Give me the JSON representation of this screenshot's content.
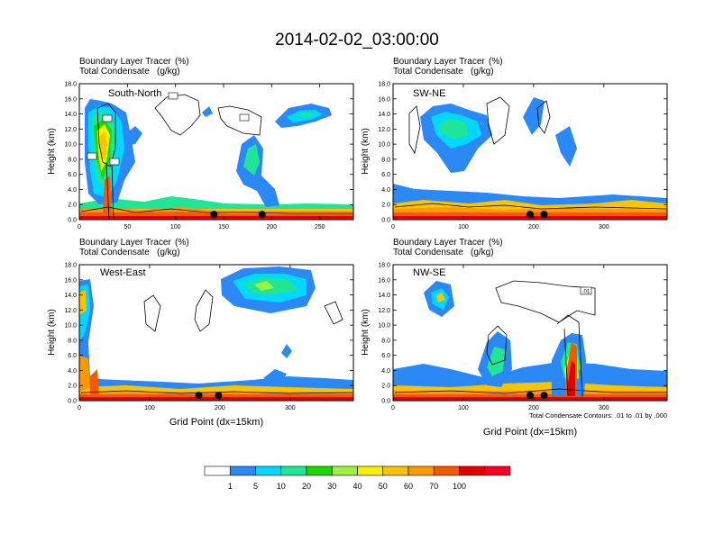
{
  "title": "2014-02-02_03:00:00",
  "label_bl": "Boundary Layer Tracer",
  "label_bl_units": "(%)",
  "label_tc": "Total Condensate",
  "label_tc_units": "(g/kg)",
  "ylabel": "Height (km)",
  "xlabel": "Grid Point (dx=15km)",
  "contour_note": "Total Condensate Contours: .01 to .01 by .000",
  "contour_label": ".01",
  "colors": {
    "levels": [
      "#ffffff",
      "#2a89f5",
      "#00d8ff",
      "#21e596",
      "#1ed700",
      "#9ef040",
      "#f8f000",
      "#f8c400",
      "#fb9a00",
      "#f25a00",
      "#e10000",
      "#f80025"
    ]
  },
  "chart_data": [
    {
      "type": "contour-cross-section",
      "panel": "South-North",
      "xlim": [
        0,
        285
      ],
      "ylim": [
        0,
        18
      ],
      "xticks": [
        0,
        50,
        100,
        150,
        200,
        250
      ],
      "yticks": [
        "0.0",
        "2.0",
        "4.0",
        "6.0",
        "8.0",
        "10.0",
        "12.0",
        "14.0",
        "16.0",
        "18.0"
      ],
      "markers": [
        140,
        190
      ]
    },
    {
      "type": "contour-cross-section",
      "panel": "SW-NE",
      "xlim": [
        0,
        390
      ],
      "ylim": [
        0,
        18
      ],
      "xticks": [
        0,
        100,
        200,
        300
      ],
      "yticks": [
        "0.0",
        "2.0",
        "4.0",
        "6.0",
        "8.0",
        "10.0",
        "12.0",
        "14.0",
        "16.0",
        "18.0"
      ],
      "markers": [
        195,
        215
      ]
    },
    {
      "type": "contour-cross-section",
      "panel": "West-East",
      "xlim": [
        0,
        390
      ],
      "ylim": [
        0,
        18
      ],
      "xticks": [
        0,
        100,
        200,
        300
      ],
      "yticks": [
        "0.0",
        "2.0",
        "4.0",
        "6.0",
        "8.0",
        "10.0",
        "12.0",
        "14.0",
        "16.0",
        "18.0"
      ],
      "markers": [
        170,
        198
      ]
    },
    {
      "type": "contour-cross-section",
      "panel": "NW-SE",
      "xlim": [
        0,
        390
      ],
      "ylim": [
        0,
        18
      ],
      "xticks": [
        0,
        100,
        200,
        300
      ],
      "yticks": [
        "0.0",
        "2.0",
        "4.0",
        "6.0",
        "8.0",
        "10.0",
        "12.0",
        "14.0",
        "16.0",
        "18.0"
      ],
      "markers": [
        195,
        215
      ]
    }
  ],
  "colorbar": {
    "labels": [
      "1",
      "5",
      "10",
      "20",
      "30",
      "40",
      "50",
      "60",
      "70",
      "100"
    ]
  }
}
